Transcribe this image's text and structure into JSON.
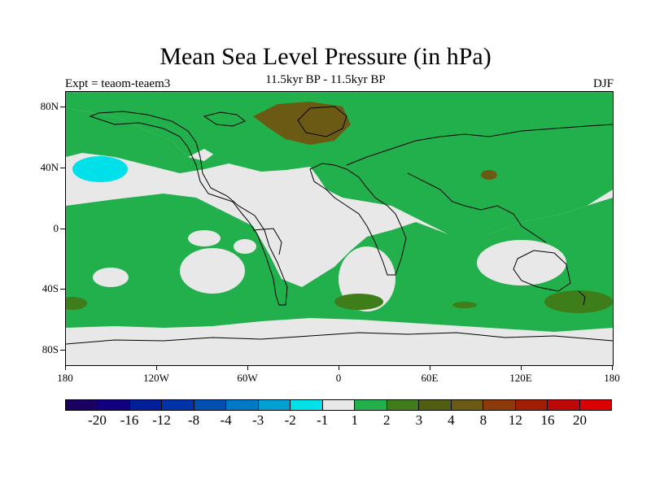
{
  "title": "Mean Sea Level Pressure (in hPa)",
  "subtitle": "11.5kyr BP - 11.5kyr BP",
  "experiment": "Expt = teaom-teaem3",
  "season": "DJF",
  "map": {
    "lat_labels": [
      "80N",
      "40N",
      "0",
      "40S",
      "80S"
    ],
    "lon_labels": [
      "180",
      "120W",
      "60W",
      "0",
      "60E",
      "120E",
      "180"
    ]
  },
  "colors": {
    "background_field": "#e8e8e8",
    "positive_1_2": "#21b04b",
    "positive_3_4": "#3f7d1a",
    "positive_4_8": "#6b5a14",
    "negative_2_1": "#00e0e8",
    "coastline": "#000000"
  },
  "colorbar": {
    "labels": [
      "-20",
      "-16",
      "-12",
      "-8",
      "-4",
      "-3",
      "-2",
      "-1",
      "1",
      "2",
      "3",
      "4",
      "8",
      "12",
      "16",
      "20"
    ],
    "colors": [
      "#1a0060",
      "#100080",
      "#001f99",
      "#0032a8",
      "#0050b4",
      "#0078c8",
      "#00a0d2",
      "#00e0e8",
      "#e8e8e8",
      "#21b04b",
      "#3f7d1a",
      "#4f5e10",
      "#6b5a14",
      "#8c3a0a",
      "#a01e05",
      "#be0808",
      "#d80000"
    ]
  }
}
